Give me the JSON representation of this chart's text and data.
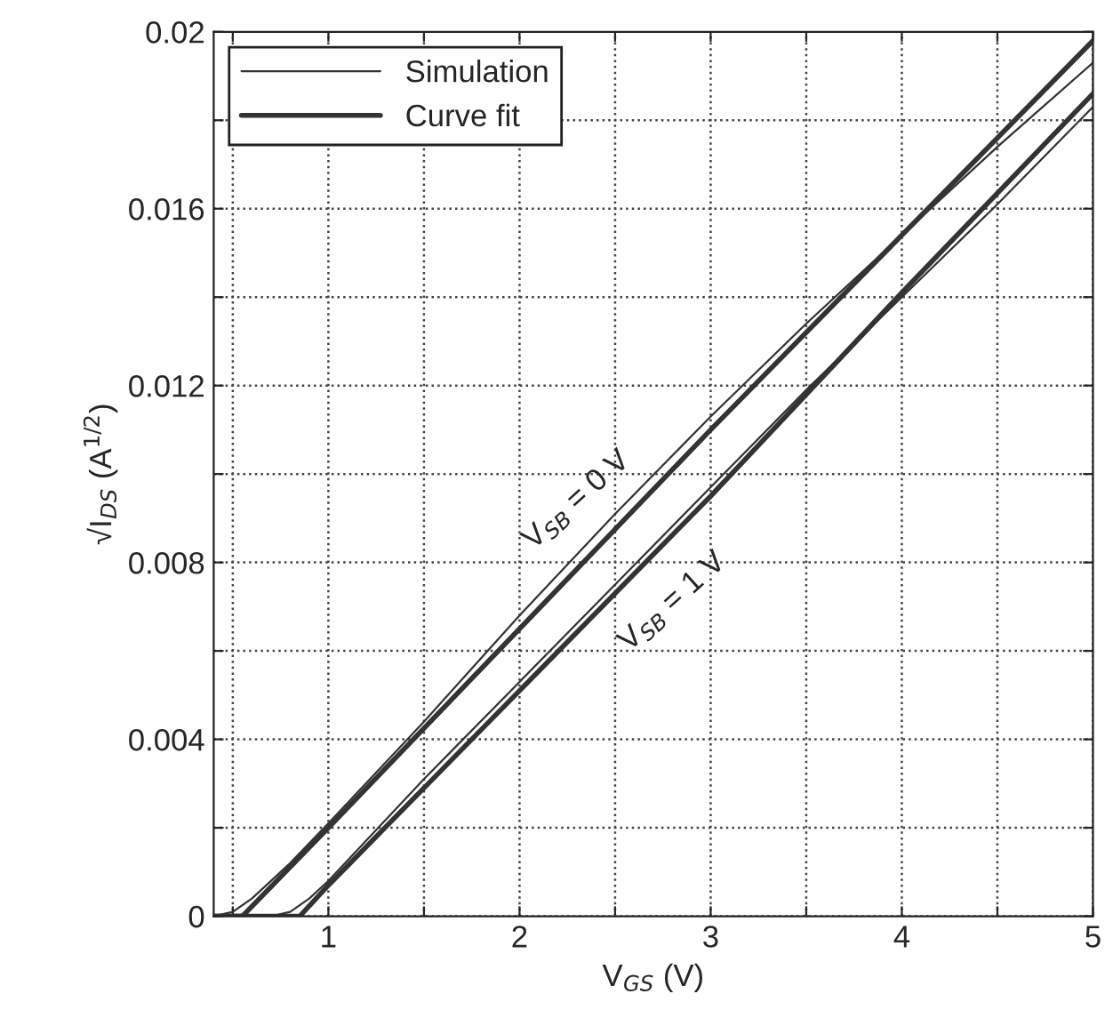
{
  "chart_data": {
    "type": "line",
    "xlabel": "V$_{GS}$ (V)",
    "ylabel": "√I$_{DS}$ (A$^{1/2}$)",
    "series": [
      {
        "name": "Simulation",
        "color": "#333333",
        "x": [
          0.4,
          0.5,
          0.6,
          0.8,
          1,
          1.5,
          2,
          2.5,
          3,
          3.5,
          4,
          4.5,
          5
        ],
        "values": [
          0,
          0.0001,
          0.0004,
          0.0012,
          0.0021,
          0.0044,
          0.0068,
          0.0091,
          0.0113,
          0.0134,
          0.0154,
          0.0174,
          0.0193
        ]
      },
      {
        "name": "Curve fit",
        "color": "#333333",
        "x": [
          0.4,
          0.55,
          1,
          2,
          3,
          4,
          5
        ],
        "values": [
          0,
          0,
          0.002,
          0.0065,
          0.011,
          0.0154,
          0.0198
        ]
      },
      {
        "color": "#333333",
        "x": [
          0.4,
          0.7,
          0.8,
          0.9,
          1,
          1.5,
          2,
          2.5,
          3,
          3.5,
          4,
          4.5,
          5
        ],
        "values": [
          0,
          0,
          0.0001,
          0.0004,
          0.0008,
          0.0031,
          0.0053,
          0.0075,
          0.0097,
          0.0119,
          0.014,
          0.0161,
          0.0183
        ]
      },
      {
        "color": "#333333",
        "x": [
          0.4,
          0.85,
          1,
          2,
          3,
          4,
          5
        ],
        "values": [
          0,
          0,
          0.0007,
          0.0051,
          0.0095,
          0.0141,
          0.0186
        ]
      }
    ],
    "annotations": [
      "V$_{SB}$ = 0 V",
      "V$_{SB}$ = 1 V"
    ],
    "xlim": [
      0.4,
      5
    ],
    "xticks": [
      {
        "value": 0.5,
        "label": null
      },
      1,
      {
        "value": 1.5,
        "label": null
      },
      2,
      {
        "value": 2.5,
        "label": null
      },
      3,
      {
        "value": 3.5,
        "label": null
      },
      4,
      {
        "value": 4.5,
        "label": null
      },
      5
    ],
    "ylim": [
      0,
      0.02
    ],
    "yticks": [
      0,
      {
        "value": 0.002,
        "label": null
      },
      0.004,
      {
        "value": 0.006,
        "label": null
      },
      0.008,
      {
        "value": 0.01,
        "label": null
      },
      0.012,
      {
        "value": 0.014,
        "label": null
      },
      0.016,
      {
        "value": 0.018,
        "label": null
      },
      0.02
    ],
    "grid": true,
    "legend": "top left",
    "line_style": "solid",
    "marker": "none"
  }
}
